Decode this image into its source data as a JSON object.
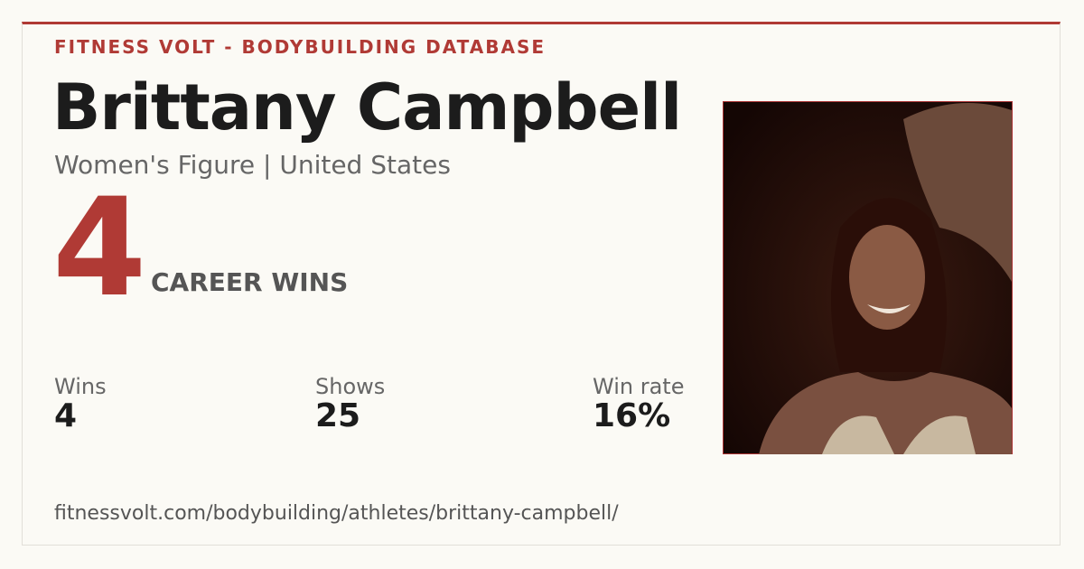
{
  "header": {
    "brand": "FITNESS VOLT - BODYBUILDING DATABASE"
  },
  "athlete": {
    "name": "Brittany Campbell",
    "subtitle": "Women's Figure | United States"
  },
  "highlight": {
    "value": "4",
    "label": "CAREER WINS"
  },
  "stats": [
    {
      "label": "Wins",
      "value": "4"
    },
    {
      "label": "Shows",
      "value": "25"
    },
    {
      "label": "Win rate",
      "value": "16%"
    }
  ],
  "url": "fitnessvolt.com/bodybuilding/athletes/brittany-campbell/"
}
